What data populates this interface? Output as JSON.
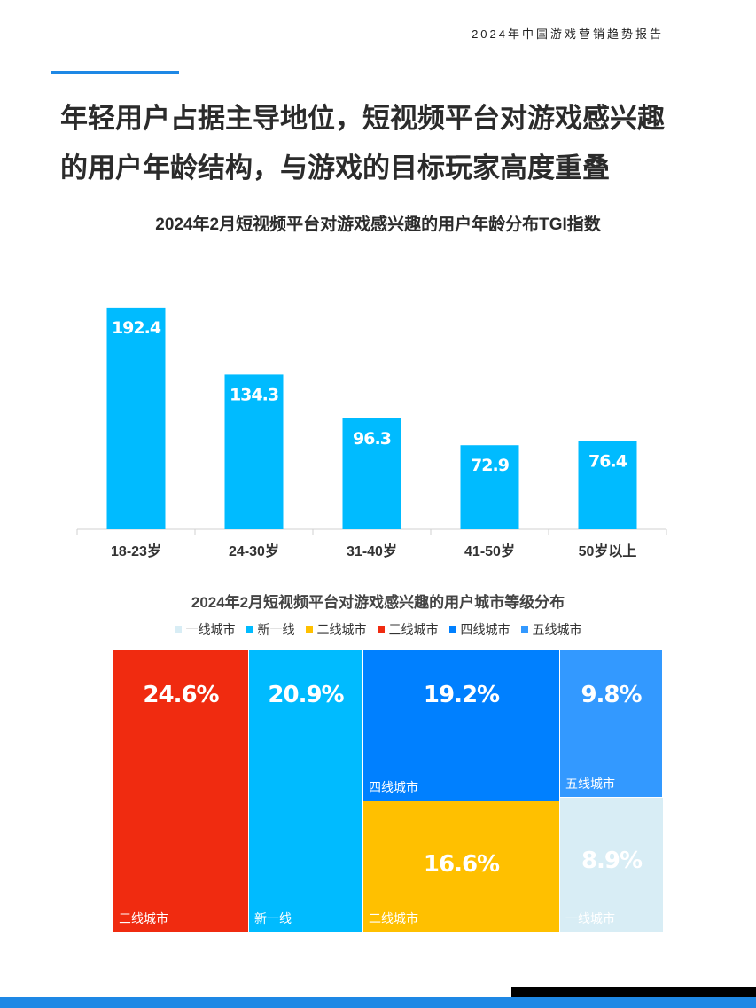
{
  "header": {
    "report_title": "2024年中国游戏营销趋势报告"
  },
  "headline": {
    "line1": "年轻用户占据主导地位，短视频平台对游戏感兴趣",
    "line2": "的用户年龄结构，与游戏的目标玩家高度重叠"
  },
  "chart_data": [
    {
      "type": "bar",
      "title": "2024年2月短视频平台对游戏感兴趣的用户年龄分布TGI指数",
      "categories": [
        "18-23岁",
        "24-30岁",
        "31-40岁",
        "41-50岁",
        "50岁以上"
      ],
      "values": [
        192.4,
        134.3,
        96.3,
        72.9,
        76.4
      ],
      "value_labels": [
        "192.4",
        "134.3",
        "96.3",
        "72.9",
        "76.4"
      ],
      "ylim": [
        0,
        200
      ],
      "grid": false,
      "color": "#00bbff"
    },
    {
      "type": "treemap",
      "title": "2024年2月短视频平台对游戏感兴趣的用户城市等级分布",
      "legend_position": "top",
      "legend": [
        "一线城市",
        "新一线",
        "二线城市",
        "三线城市",
        "四线城市",
        "五线城市"
      ],
      "colors": [
        "#d8edf5",
        "#00bbff",
        "#ffc000",
        "#f02b10",
        "#0080ff",
        "#3399ff"
      ],
      "cells": [
        {
          "name": "三线城市",
          "value": "24.6%",
          "color": "#f02b10"
        },
        {
          "name": "新一线",
          "value": "20.9%",
          "color": "#00bbff"
        },
        {
          "name": "四线城市",
          "value": "19.2%",
          "color": "#0080ff"
        },
        {
          "name": "二线城市",
          "value": "16.6%",
          "color": "#ffc000"
        },
        {
          "name": "五线城市",
          "value": "9.8%",
          "color": "#3399ff"
        },
        {
          "name": "一线城市",
          "value": "8.9%",
          "color": "#d8edf5"
        }
      ]
    }
  ]
}
